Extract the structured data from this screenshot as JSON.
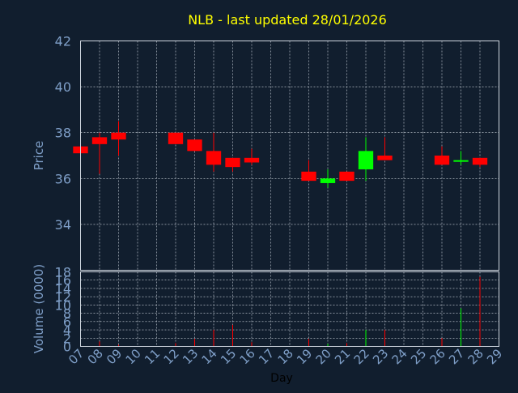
{
  "colors": {
    "background": "#111e2e",
    "title": "#ffff00",
    "axis_text": "#7f9fc8",
    "grid": "#cfd6df",
    "frame": "#cfd6df",
    "up": "#00ff00",
    "down": "#ff0000"
  },
  "chart_data": [
    {
      "type": "candlestick",
      "title": "NLB - last updated 28/01/2026",
      "xlabel": "",
      "ylabel": "Price",
      "ylim": [
        32,
        42
      ],
      "yticks": [
        34,
        36,
        38,
        40,
        42
      ],
      "grid": true,
      "xlim": [
        "07",
        "29"
      ],
      "candles": [
        {
          "day": "07",
          "open": 37.4,
          "close": 37.1,
          "high": 37.4,
          "low": 37.1
        },
        {
          "day": "08",
          "open": 37.8,
          "close": 37.5,
          "high": 38.0,
          "low": 36.2
        },
        {
          "day": "09",
          "open": 38.0,
          "close": 37.7,
          "high": 38.5,
          "low": 37.0
        },
        {
          "day": "12",
          "open": 38.0,
          "close": 37.5,
          "high": 38.0,
          "low": 37.5
        },
        {
          "day": "13",
          "open": 37.7,
          "close": 37.2,
          "high": 37.7,
          "low": 37.2
        },
        {
          "day": "14",
          "open": 37.2,
          "close": 36.6,
          "high": 38.0,
          "low": 36.3
        },
        {
          "day": "15",
          "open": 36.9,
          "close": 36.5,
          "high": 36.9,
          "low": 36.3
        },
        {
          "day": "16",
          "open": 36.9,
          "close": 36.7,
          "high": 37.3,
          "low": 36.6
        },
        {
          "day": "19",
          "open": 36.3,
          "close": 35.9,
          "high": 36.8,
          "low": 35.9
        },
        {
          "day": "20",
          "open": 35.8,
          "close": 36.0,
          "high": 36.4,
          "low": 35.6
        },
        {
          "day": "21",
          "open": 36.3,
          "close": 35.9,
          "high": 36.3,
          "low": 35.9
        },
        {
          "day": "22",
          "open": 36.4,
          "close": 37.2,
          "high": 37.8,
          "low": 35.9
        },
        {
          "day": "23",
          "open": 37.0,
          "close": 36.8,
          "high": 37.8,
          "low": 36.8
        },
        {
          "day": "26",
          "open": 37.0,
          "close": 36.6,
          "high": 37.4,
          "low": 36.6
        },
        {
          "day": "27",
          "open": 36.75,
          "close": 36.8,
          "high": 37.2,
          "low": 36.6
        },
        {
          "day": "28",
          "open": 36.9,
          "close": 36.6,
          "high": 36.9,
          "low": 36.5
        }
      ]
    },
    {
      "type": "bar",
      "title": "",
      "xlabel": "Day",
      "ylabel": "Volume (0000)",
      "ylim": [
        0,
        18
      ],
      "yticks": [
        0,
        2,
        4,
        6,
        8,
        10,
        12,
        14,
        16,
        18
      ],
      "grid": true,
      "categories": [
        "07",
        "08",
        "09",
        "10",
        "11",
        "12",
        "13",
        "14",
        "15",
        "16",
        "17",
        "18",
        "19",
        "20",
        "21",
        "22",
        "23",
        "24",
        "25",
        "26",
        "27",
        "28",
        "29"
      ],
      "bars": [
        {
          "day": "07",
          "value": 0.3,
          "direction": "down"
        },
        {
          "day": "08",
          "value": 1.2,
          "direction": "down"
        },
        {
          "day": "09",
          "value": 0.4,
          "direction": "down"
        },
        {
          "day": "12",
          "value": 0.8,
          "direction": "down"
        },
        {
          "day": "13",
          "value": 1.8,
          "direction": "down"
        },
        {
          "day": "14",
          "value": 4.0,
          "direction": "down"
        },
        {
          "day": "15",
          "value": 5.2,
          "direction": "down"
        },
        {
          "day": "16",
          "value": 1.0,
          "direction": "down"
        },
        {
          "day": "19",
          "value": 1.8,
          "direction": "down"
        },
        {
          "day": "20",
          "value": 0.6,
          "direction": "up"
        },
        {
          "day": "21",
          "value": 0.8,
          "direction": "down"
        },
        {
          "day": "22",
          "value": 4.0,
          "direction": "up"
        },
        {
          "day": "23",
          "value": 4.0,
          "direction": "down"
        },
        {
          "day": "26",
          "value": 2.0,
          "direction": "down"
        },
        {
          "day": "27",
          "value": 9.2,
          "direction": "up"
        },
        {
          "day": "28",
          "value": 16.8,
          "direction": "down"
        }
      ]
    }
  ]
}
